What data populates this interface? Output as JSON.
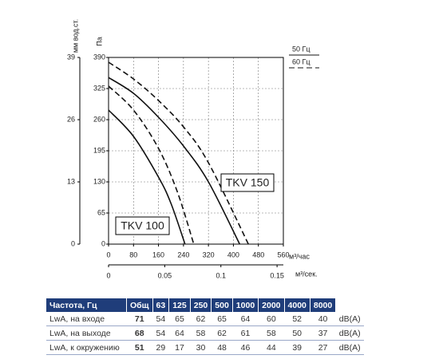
{
  "chart_data": {
    "type": "line",
    "x_label": "м³/час",
    "x2_label": "м³/сек.",
    "y_label": "Па",
    "y2_label": "мм вод.ст.",
    "xlim": [
      0,
      560
    ],
    "xticks": [
      0,
      80,
      160,
      240,
      320,
      400,
      480,
      560
    ],
    "ylim": [
      0,
      390
    ],
    "yticks": [
      0,
      65,
      130,
      195,
      260,
      325,
      390
    ],
    "y2lim": [
      0,
      39
    ],
    "y2ticks": [
      0,
      13,
      26,
      39
    ],
    "x2lim": [
      0,
      0.1556
    ],
    "x2ticks": [
      0,
      0.05,
      0.1,
      0.15
    ],
    "grid": true,
    "legend": [
      {
        "label": "50 Гц",
        "dash": "solid"
      },
      {
        "label": "60 Гц",
        "dash": "dashed"
      }
    ],
    "annotations": [
      "TKV 150",
      "TKV 100"
    ],
    "series": [
      {
        "color": "#111",
        "dash": "solid",
        "x": [
          0,
          80,
          160,
          200,
          245
        ],
        "values": [
          280,
          225,
          140,
          85,
          0
        ]
      },
      {
        "color": "#111",
        "dash": "dashed",
        "x": [
          0,
          80,
          160,
          220,
          273
        ],
        "values": [
          330,
          280,
          200,
          110,
          0
        ]
      },
      {
        "color": "#111",
        "dash": "solid",
        "x": [
          0,
          80,
          160,
          240,
          320,
          420
        ],
        "values": [
          348,
          315,
          265,
          205,
          130,
          0
        ]
      },
      {
        "color": "#111",
        "dash": "dashed",
        "x": [
          0,
          80,
          160,
          240,
          320,
          448
        ],
        "values": [
          380,
          345,
          300,
          245,
          170,
          0
        ]
      }
    ]
  },
  "table": {
    "header": [
      "Частота, Гц",
      "Общ",
      "63",
      "125",
      "250",
      "500",
      "1000",
      "2000",
      "4000",
      "8000"
    ],
    "rows": [
      [
        "LwA, на входе",
        71,
        54,
        65,
        62,
        65,
        64,
        60,
        52,
        40,
        "dB(A)"
      ],
      [
        "LwA, на выходе",
        68,
        54,
        64,
        58,
        62,
        61,
        58,
        50,
        37,
        "dB(A)"
      ],
      [
        "LwA, к окружению",
        51,
        29,
        17,
        30,
        48,
        46,
        44,
        39,
        27,
        "dB(A)"
      ]
    ]
  }
}
